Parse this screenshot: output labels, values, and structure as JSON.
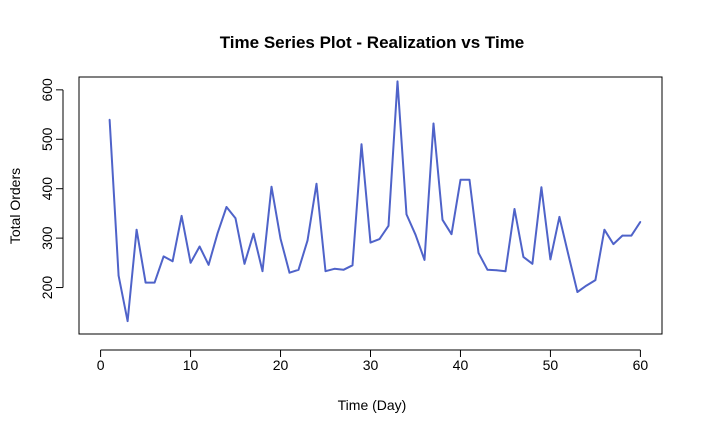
{
  "chart_data": {
    "type": "line",
    "title": "Time Series Plot - Realization vs Time",
    "xlabel": "Time (Day)",
    "ylabel": "Total Orders",
    "xlim": [
      -2.4,
      62.4
    ],
    "ylim": [
      106,
      626
    ],
    "x_ticks": [
      0,
      10,
      20,
      30,
      40,
      50,
      60
    ],
    "y_ticks": [
      200,
      300,
      400,
      500,
      600
    ],
    "grid": false,
    "line_color": "#4f63c9",
    "x": [
      1,
      2,
      3,
      4,
      5,
      6,
      7,
      8,
      9,
      10,
      11,
      12,
      13,
      14,
      15,
      16,
      17,
      18,
      19,
      20,
      21,
      22,
      23,
      24,
      25,
      26,
      27,
      28,
      29,
      30,
      31,
      32,
      33,
      34,
      35,
      36,
      37,
      38,
      39,
      40,
      41,
      42,
      43,
      44,
      45,
      46,
      47,
      48,
      49,
      50,
      51,
      52,
      53,
      54,
      55,
      56,
      57,
      58,
      59,
      60
    ],
    "y": [
      540,
      224,
      132,
      317,
      210,
      210,
      263,
      253,
      345,
      250,
      283,
      246,
      310,
      363,
      340,
      248,
      309,
      233,
      404,
      299,
      230,
      236,
      295,
      410,
      233,
      238,
      236,
      245,
      490,
      291,
      298,
      325,
      617,
      348,
      307,
      256,
      532,
      337,
      308,
      418,
      418,
      270,
      236,
      235,
      233,
      359,
      262,
      248,
      403,
      257,
      343,
      266,
      191,
      204,
      215,
      317,
      288,
      305,
      305,
      333
    ]
  }
}
